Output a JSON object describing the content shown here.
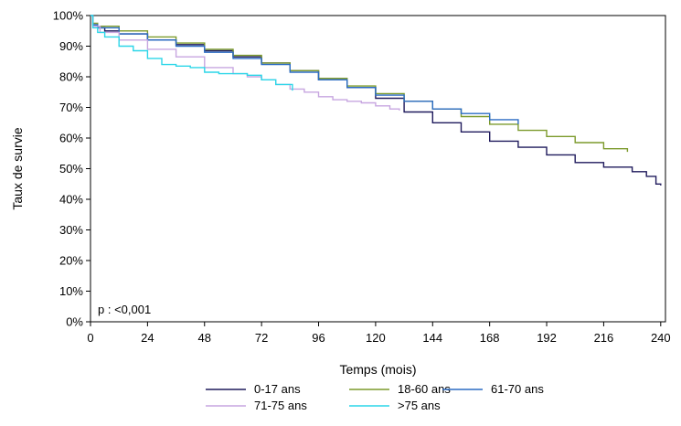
{
  "chart_data": {
    "type": "line",
    "title": "",
    "xlabel": "Temps (mois)",
    "ylabel": "Taux de survie",
    "xlim": [
      0,
      242
    ],
    "ylim": [
      0,
      100
    ],
    "x_ticks": [
      0,
      24,
      48,
      72,
      96,
      120,
      144,
      168,
      192,
      216,
      240
    ],
    "y_ticks": [
      "0%",
      "10%",
      "20%",
      "30%",
      "40%",
      "50%",
      "60%",
      "70%",
      "80%",
      "90%",
      "100%"
    ],
    "annotation": "p : <0,001",
    "legend_position": "bottom",
    "series": [
      {
        "name": "0-17 ans",
        "color": "#1f1a5c",
        "x": [
          0,
          1,
          3,
          6,
          12,
          24,
          36,
          48,
          60,
          72,
          84,
          96,
          108,
          120,
          132,
          144,
          156,
          168,
          180,
          192,
          204,
          216,
          228,
          234,
          238,
          240
        ],
        "y": [
          100,
          97,
          96,
          95,
          94,
          92,
          90.5,
          88.5,
          86.5,
          84.5,
          82,
          79,
          76.5,
          73,
          68.5,
          65,
          62,
          59,
          57,
          54.5,
          52,
          50.5,
          49,
          47.5,
          45,
          44.5
        ]
      },
      {
        "name": "18-60 ans",
        "color": "#7c9a2c",
        "x": [
          0,
          1,
          3,
          12,
          24,
          36,
          48,
          60,
          72,
          84,
          96,
          108,
          120,
          132,
          144,
          156,
          168,
          180,
          192,
          204,
          216,
          226
        ],
        "y": [
          100,
          97.5,
          96.5,
          95,
          93,
          91,
          89,
          87,
          84.5,
          82,
          79.5,
          77,
          74.5,
          72,
          69.5,
          67,
          64.5,
          62.5,
          60.5,
          58.5,
          56.5,
          55.5
        ]
      },
      {
        "name": "61-70 ans",
        "color": "#2b6cc4",
        "x": [
          0,
          1,
          3,
          12,
          24,
          36,
          48,
          60,
          72,
          84,
          96,
          108,
          120,
          132,
          144,
          156,
          168,
          180
        ],
        "y": [
          100,
          97,
          96,
          94,
          92,
          90,
          88,
          86,
          84,
          81.5,
          79,
          76.5,
          74,
          72,
          69.5,
          68,
          66,
          64.5
        ]
      },
      {
        "name": "71-75 ans",
        "color": "#c7a6e0",
        "x": [
          0,
          1,
          4,
          12,
          24,
          36,
          48,
          60,
          66,
          72,
          78,
          84,
          90,
          96,
          102,
          108,
          114,
          120,
          126,
          130
        ],
        "y": [
          100,
          96.5,
          94.5,
          92,
          89,
          86.5,
          83,
          81,
          80,
          79,
          77.5,
          76,
          75,
          73.5,
          72.5,
          72,
          71.5,
          70.5,
          69.5,
          69
        ]
      },
      {
        "name": ">75 ans",
        "color": "#2cd6e8",
        "x": [
          0,
          1,
          3,
          6,
          12,
          18,
          24,
          30,
          36,
          42,
          48,
          54,
          60,
          66,
          72,
          78,
          84,
          85
        ],
        "y": [
          100,
          96,
          94.5,
          93,
          90,
          88.5,
          86,
          84,
          83.5,
          83,
          81.5,
          81,
          81,
          80.5,
          79,
          77.5,
          77.5,
          75.5
        ]
      }
    ]
  }
}
